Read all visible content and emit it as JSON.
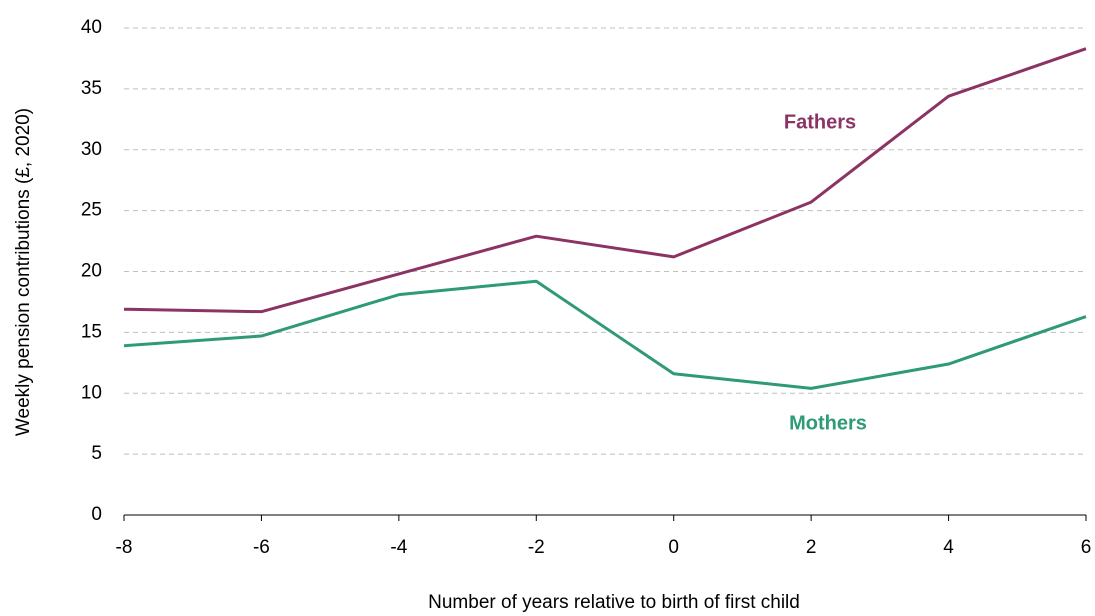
{
  "chart_data": {
    "type": "line",
    "x": [
      -8,
      -6,
      -4,
      -2,
      0,
      2,
      4,
      6
    ],
    "series": [
      {
        "name": "Fathers",
        "color": "#8b3464",
        "values": [
          16.9,
          16.7,
          19.8,
          22.9,
          21.2,
          25.7,
          34.4,
          38.3
        ]
      },
      {
        "name": "Mothers",
        "color": "#2e9a77",
        "values": [
          13.9,
          14.7,
          18.1,
          19.2,
          11.6,
          10.4,
          12.4,
          16.3
        ]
      }
    ],
    "xlabel": "Number of years relative to birth of first child",
    "ylabel": "Weekly pension contributions (£, 2020)",
    "xlim": [
      -8,
      6
    ],
    "xticks": [
      -8,
      -6,
      -4,
      -2,
      0,
      2,
      4,
      6
    ],
    "ylim": [
      0,
      40
    ],
    "yticks": [
      0,
      5,
      10,
      15,
      20,
      25,
      30,
      35,
      40
    ],
    "grid": true
  }
}
